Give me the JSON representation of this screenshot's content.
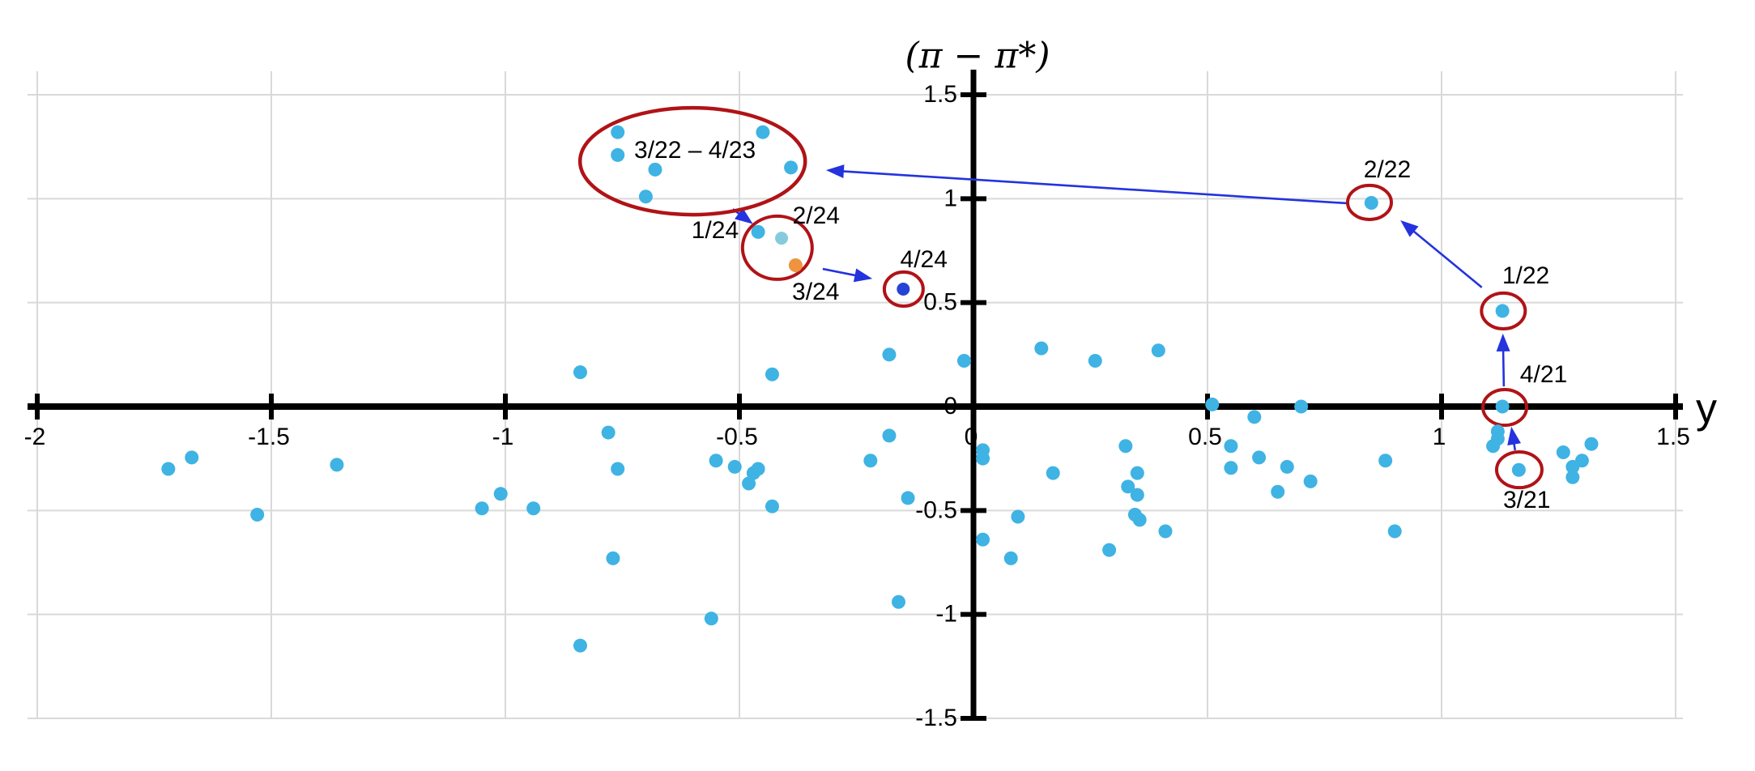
{
  "chart_data": {
    "type": "scatter",
    "title": "",
    "xlabel": "y",
    "ylabel": "(π − π*)",
    "xlim": [
      -2,
      1.5
    ],
    "ylim": [
      -1.5,
      1.5
    ],
    "grid": true,
    "legend": "none",
    "x_tick_values": [
      -2,
      -1.5,
      -1,
      -0.5,
      0,
      0.5,
      1,
      1.5
    ],
    "x_tick_labels": [
      "-2",
      "-1.5",
      "-1",
      "-0.5",
      "0",
      "0.5",
      "1",
      "1.5"
    ],
    "y_tick_values": [
      1.5,
      1,
      0.5,
      0,
      -0.5,
      -1,
      -1.5
    ],
    "y_tick_labels": [
      "1.5",
      "1",
      "0.5",
      "0",
      "-0.5",
      "-1",
      "-1.5"
    ],
    "colors": {
      "point": "#3fb3e3",
      "point_2_24": "#85cbdd",
      "point_3_24": "#ee9440",
      "point_4_24": "#2344d4",
      "ellipse": "#b01317",
      "arrow": "#2433dd",
      "grid": "#d9d9d9",
      "axis": "#000000"
    },
    "series": [
      {
        "name": "quarterly-points",
        "color": "#3fb3e3",
        "radius": 8.5,
        "points": [
          [
            -0.76,
            1.32
          ],
          [
            -0.76,
            1.21
          ],
          [
            -0.68,
            1.14
          ],
          [
            -0.7,
            1.01
          ],
          [
            -0.45,
            1.32
          ],
          [
            -0.39,
            1.15
          ],
          [
            -0.46,
            0.84
          ],
          [
            0.85,
            0.98
          ],
          [
            1.13,
            0.46
          ],
          [
            1.13,
            0.0
          ],
          [
            1.165,
            -0.305
          ],
          [
            -0.84,
            0.165
          ],
          [
            -0.43,
            0.155
          ],
          [
            -0.18,
            0.25
          ],
          [
            -0.02,
            0.22
          ],
          [
            0.145,
            0.28
          ],
          [
            0.26,
            0.22
          ],
          [
            0.395,
            0.27
          ],
          [
            0.51,
            0.01
          ],
          [
            0.7,
            0.0
          ],
          [
            0.6,
            -0.05
          ],
          [
            0.02,
            -0.21
          ],
          [
            0.02,
            -0.25
          ],
          [
            -1.72,
            -0.3
          ],
          [
            -1.67,
            -0.245
          ],
          [
            -1.53,
            -0.52
          ],
          [
            -1.36,
            -0.28
          ],
          [
            -1.05,
            -0.49
          ],
          [
            -1.01,
            -0.42
          ],
          [
            -0.94,
            -0.49
          ],
          [
            -0.78,
            -0.125
          ],
          [
            -0.76,
            -0.3
          ],
          [
            -0.77,
            -0.73
          ],
          [
            -0.84,
            -1.15
          ],
          [
            -0.56,
            -1.02
          ],
          [
            -0.55,
            -0.26
          ],
          [
            -0.51,
            -0.29
          ],
          [
            -0.47,
            -0.32
          ],
          [
            -0.46,
            -0.3
          ],
          [
            -0.48,
            -0.37
          ],
          [
            -0.43,
            -0.48
          ],
          [
            -0.22,
            -0.26
          ],
          [
            -0.18,
            -0.14
          ],
          [
            -0.14,
            -0.44
          ],
          [
            -0.16,
            -0.94
          ],
          [
            0.17,
            -0.32
          ],
          [
            0.325,
            -0.19
          ],
          [
            0.35,
            -0.32
          ],
          [
            0.33,
            -0.385
          ],
          [
            0.35,
            -0.425
          ],
          [
            0.345,
            -0.52
          ],
          [
            0.355,
            -0.545
          ],
          [
            0.41,
            -0.6
          ],
          [
            0.29,
            -0.69
          ],
          [
            0.095,
            -0.53
          ],
          [
            0.02,
            -0.64
          ],
          [
            0.08,
            -0.73
          ],
          [
            0.55,
            -0.19
          ],
          [
            0.55,
            -0.295
          ],
          [
            0.61,
            -0.245
          ],
          [
            0.67,
            -0.29
          ],
          [
            0.65,
            -0.41
          ],
          [
            0.72,
            -0.36
          ],
          [
            0.88,
            -0.26
          ],
          [
            0.9,
            -0.6
          ],
          [
            1.12,
            -0.12
          ],
          [
            1.12,
            -0.155
          ],
          [
            1.11,
            -0.19
          ],
          [
            1.26,
            -0.22
          ],
          [
            1.32,
            -0.18
          ],
          [
            1.3,
            -0.26
          ],
          [
            1.28,
            -0.29
          ],
          [
            1.28,
            -0.34
          ]
        ]
      },
      {
        "name": "point-2/24",
        "color": "#85cbdd",
        "radius": 8,
        "points": [
          [
            -0.41,
            0.81
          ]
        ]
      },
      {
        "name": "point-3/24",
        "color": "#ee9440",
        "radius": 8.5,
        "points": [
          [
            -0.38,
            0.68
          ]
        ]
      },
      {
        "name": "point-4/24",
        "color": "#2344d4",
        "radius": 8,
        "points": [
          [
            -0.15,
            0.565
          ]
        ]
      }
    ],
    "annotations": {
      "ellipses": [
        {
          "name": "ellipse-3/22-4/23",
          "cx": -0.6,
          "cy": 1.18,
          "rx": 0.2405,
          "ry": 0.257,
          "stroke_width": 4.5
        },
        {
          "name": "circle-1/24-3/24",
          "cx": -0.419,
          "cy": 0.764,
          "rx": 0.0744,
          "ry": 0.152,
          "stroke_width": 4
        },
        {
          "name": "circle-4/24",
          "cx": -0.149,
          "cy": 0.565,
          "rx": 0.0415,
          "ry": 0.082,
          "stroke_width": 4
        },
        {
          "name": "circle-2/22",
          "cx": 0.846,
          "cy": 0.982,
          "rx": 0.0467,
          "ry": 0.082,
          "stroke_width": 4
        },
        {
          "name": "circle-1/22",
          "cx": 1.132,
          "cy": 0.46,
          "rx": 0.0467,
          "ry": 0.086,
          "stroke_width": 4
        },
        {
          "name": "circle-4/21",
          "cx": 1.135,
          "cy": -0.004,
          "rx": 0.0467,
          "ry": 0.086,
          "stroke_width": 4
        },
        {
          "name": "circle-3/21",
          "cx": 1.166,
          "cy": -0.304,
          "rx": 0.0484,
          "ry": 0.086,
          "stroke_width": 4
        }
      ],
      "arrows": [
        {
          "name": "arrow-ellipse-to-q1-24",
          "from": [
            -0.514,
            0.95
          ],
          "to": [
            -0.471,
            0.878
          ]
        },
        {
          "name": "arrow-q1-24-to-q4-24",
          "from": [
            -0.322,
            0.662
          ],
          "to": [
            -0.216,
            0.615
          ]
        },
        {
          "name": "arrow-2-22-to-ellipse",
          "from": [
            0.798,
            0.978
          ],
          "to": [
            -0.315,
            1.137
          ]
        },
        {
          "name": "arrow-1-22-to-2-22",
          "from": [
            1.086,
            0.573
          ],
          "to": [
            0.912,
            0.896
          ]
        },
        {
          "name": "arrow-4-21-to-1-22",
          "from": [
            1.133,
            0.097
          ],
          "to": [
            1.131,
            0.351
          ]
        },
        {
          "name": "arrow-3-21-to-4-21",
          "from": [
            1.157,
            -0.21
          ],
          "to": [
            1.149,
            -0.097
          ]
        }
      ],
      "labels": [
        {
          "text": "3/22 – 4/23",
          "x": -0.595,
          "y": 1.227
        },
        {
          "text": "1/24",
          "x": -0.552,
          "y": 0.841
        },
        {
          "text": "2/24",
          "x": -0.336,
          "y": 0.911
        },
        {
          "text": "3/24",
          "x": -0.337,
          "y": 0.545
        },
        {
          "text": "4/24",
          "x": -0.106,
          "y": 0.701
        },
        {
          "text": "2/22",
          "x": 0.884,
          "y": 1.133
        },
        {
          "text": "1/22",
          "x": 1.18,
          "y": 0.623
        },
        {
          "text": "4/21",
          "x": 1.218,
          "y": 0.148
        },
        {
          "text": "3/21",
          "x": 1.182,
          "y": -0.456
        }
      ]
    }
  }
}
